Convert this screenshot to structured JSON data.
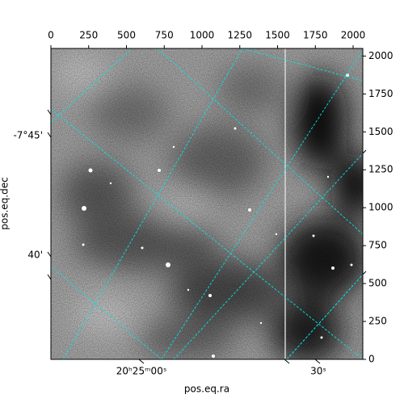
{
  "chart_data": {
    "type": "image",
    "xlabel": "pos.eq.ra",
    "ylabel": "pos.eq.dec",
    "xlim": [
      0,
      2064
    ],
    "xticks": [
      0,
      250,
      500,
      750,
      1000,
      1250,
      1500,
      1750,
      2000
    ],
    "ylim": [
      0,
      2050
    ],
    "yticks": [
      0,
      250,
      500,
      750,
      1000,
      1250,
      1500,
      1750,
      2000
    ],
    "ra_ticks": [
      "20ʰ25ᵐ00ˢ",
      "30ˢ"
    ],
    "dec_ticks": [
      "-7°45'",
      "40'"
    ],
    "grid": true,
    "grid_color": "#00e5e5"
  }
}
